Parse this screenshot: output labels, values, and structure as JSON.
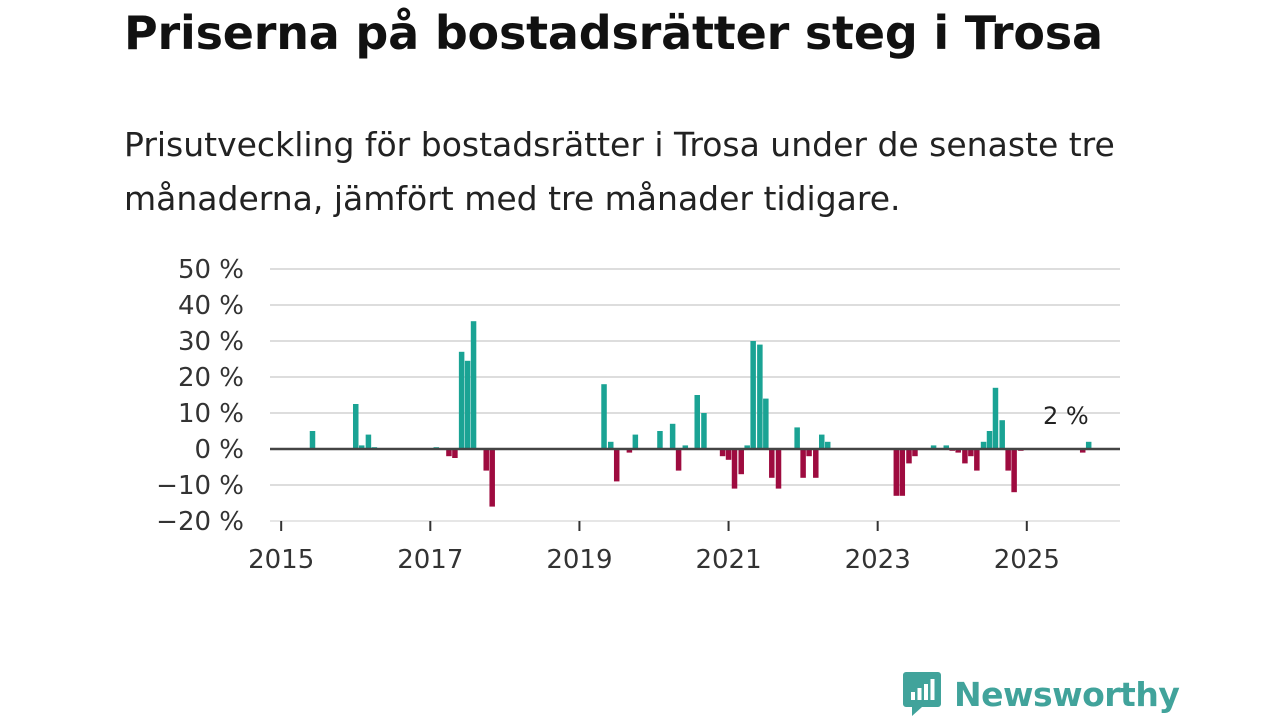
{
  "header": {
    "title": "Priserna på bostadsrätter steg i Trosa",
    "subtitle": "Prisutveckling för bostadsrätter i Trosa under de senaste tre månaderna, jämfört med tre månader tidigare."
  },
  "brand": {
    "name": "Newsworthy",
    "color": "#41a39b"
  },
  "colors": {
    "positive": "#1aa394",
    "negative": "#9e0b3f",
    "grid": "#dddddd",
    "zero_line": "#444444"
  },
  "chart_data": {
    "type": "bar",
    "title": "Priserna på bostadsrätter steg i Trosa",
    "xlabel": "",
    "ylabel": "",
    "ylim": [
      -20,
      50
    ],
    "xlim": [
      2014.85,
      2026.25
    ],
    "y_ticks": [
      50,
      40,
      30,
      20,
      10,
      0,
      -10,
      -20
    ],
    "y_tick_labels": [
      "50 %",
      "40 %",
      "30 %",
      "20 %",
      "10 %",
      "0 %",
      "−10 %",
      "−20 %"
    ],
    "x_ticks": [
      2015,
      2017,
      2019,
      2021,
      2023,
      2025
    ],
    "x_tick_labels": [
      "2015",
      "2017",
      "2019",
      "2021",
      "2023",
      "2025"
    ],
    "grid": true,
    "annotation": {
      "text": "2 %",
      "x": 2025.83,
      "value": 2
    },
    "series": [
      {
        "name": "Prisutveckling",
        "unit": "%",
        "x": [
          2015.42,
          2016.0,
          2016.08,
          2016.17,
          2016.25,
          2017.08,
          2017.25,
          2017.33,
          2017.42,
          2017.5,
          2017.58,
          2017.75,
          2017.83,
          2019.33,
          2019.42,
          2019.5,
          2019.67,
          2019.75,
          2020.08,
          2020.25,
          2020.33,
          2020.42,
          2020.58,
          2020.67,
          2020.92,
          2021.0,
          2021.08,
          2021.17,
          2021.25,
          2021.33,
          2021.42,
          2021.5,
          2021.58,
          2021.67,
          2021.92,
          2022.0,
          2022.08,
          2022.17,
          2022.25,
          2022.33,
          2023.25,
          2023.33,
          2023.42,
          2023.5,
          2023.75,
          2023.92,
          2024.0,
          2024.08,
          2024.17,
          2024.25,
          2024.33,
          2024.42,
          2024.5,
          2024.58,
          2024.67,
          2024.75,
          2024.83,
          2024.92,
          2025.75,
          2025.83
        ],
        "values": [
          5,
          12.5,
          1,
          4,
          0.5,
          0.5,
          -2,
          -2.5,
          27,
          24.5,
          35.5,
          -6,
          -16,
          18,
          2,
          -9,
          -1,
          4,
          5,
          7,
          -6,
          1,
          15,
          10,
          -2,
          -3,
          -11,
          -7,
          1,
          30,
          29,
          14,
          -8,
          -11,
          6,
          -8,
          -2,
          -8,
          4,
          2,
          -13,
          -13,
          -4,
          -2,
          1,
          1,
          -0.5,
          -1,
          -4,
          -2,
          -6,
          2,
          5,
          17,
          8,
          -6,
          -12,
          -0.5,
          -1,
          2
        ]
      }
    ]
  }
}
